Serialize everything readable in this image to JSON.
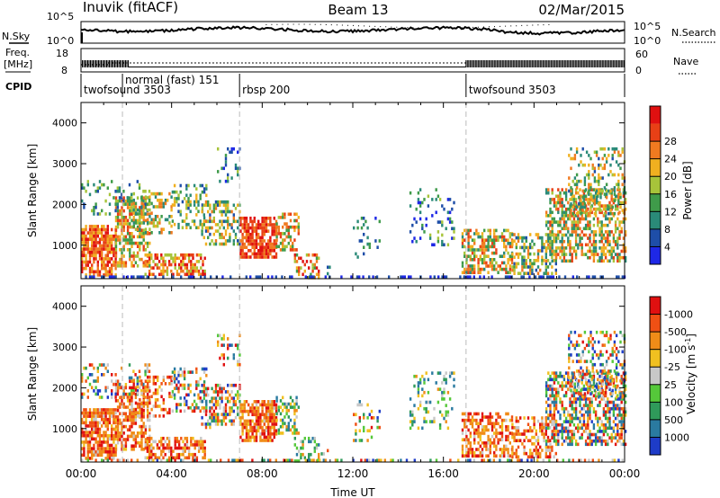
{
  "header": {
    "station": "Inuvik (fitACF)",
    "beam": "Beam 13",
    "date": "02/Mar/2015"
  },
  "strip_labels": {
    "nsky": "N.Sky",
    "nsearch": "N.Search",
    "freq_line1": "Freq.",
    "freq_line2": "[MHz]",
    "nave": "Nave",
    "cpid": "CPID",
    "nsky_tick_top": "10^5",
    "nsky_tick_bottom": "10^0",
    "nsearch_tick_top": "10^5",
    "nsearch_tick_bottom": "10^0",
    "freq_tick_top": "18",
    "freq_tick_bottom": "8",
    "nave_tick_top": "60",
    "nave_tick_bottom": "0"
  },
  "cpid_segments": [
    {
      "label": "twofsound 3503",
      "start_h": 0.0
    },
    {
      "label": "normal (fast) 151",
      "start_h": 1.83
    },
    {
      "label": "rbsp 200",
      "start_h": 7.0
    },
    {
      "label": "twofsound 3503",
      "start_h": 17.0
    }
  ],
  "chart_data": [
    {
      "type": "heatmap",
      "panel": "power",
      "ylabel": "Slant Range [km]",
      "xlabel": "",
      "xlim_hours": [
        0,
        24
      ],
      "ylim_km": [
        180,
        4500
      ],
      "y_ticks": [
        1000,
        2000,
        3000,
        4000
      ],
      "colorbar_label": "Power [dB]",
      "colorbar_ticks": [
        "4",
        "8",
        "12",
        "16",
        "20",
        "24",
        "28"
      ],
      "colorbar_colors": [
        "#1e28e6",
        "#1e4ea8",
        "#2a8a78",
        "#3f9b4a",
        "#a7c43a",
        "#f0b020",
        "#f07a20",
        "#e84016",
        "#e01010"
      ]
    },
    {
      "type": "heatmap",
      "panel": "velocity",
      "ylabel": "Slant Range [km]",
      "xlabel": "Time UT",
      "xlim_hours": [
        0,
        24
      ],
      "ylim_km": [
        180,
        4500
      ],
      "y_ticks": [
        1000,
        2000,
        3000,
        4000
      ],
      "x_ticks": [
        "00:00",
        "04:00",
        "08:00",
        "12:00",
        "16:00",
        "20:00",
        "00:00"
      ],
      "colorbar_label": "Velocity [m s^-1]",
      "colorbar_ticks": [
        "1000",
        "500",
        "100",
        "25",
        "-25",
        "-100",
        "-500",
        "-1000"
      ],
      "colorbar_colors": [
        "#1e3cc8",
        "#2a7aa0",
        "#2f9a5a",
        "#55c83a",
        "#c8c8c8",
        "#f0c020",
        "#f08c18",
        "#f05014",
        "#e01010"
      ]
    }
  ]
}
